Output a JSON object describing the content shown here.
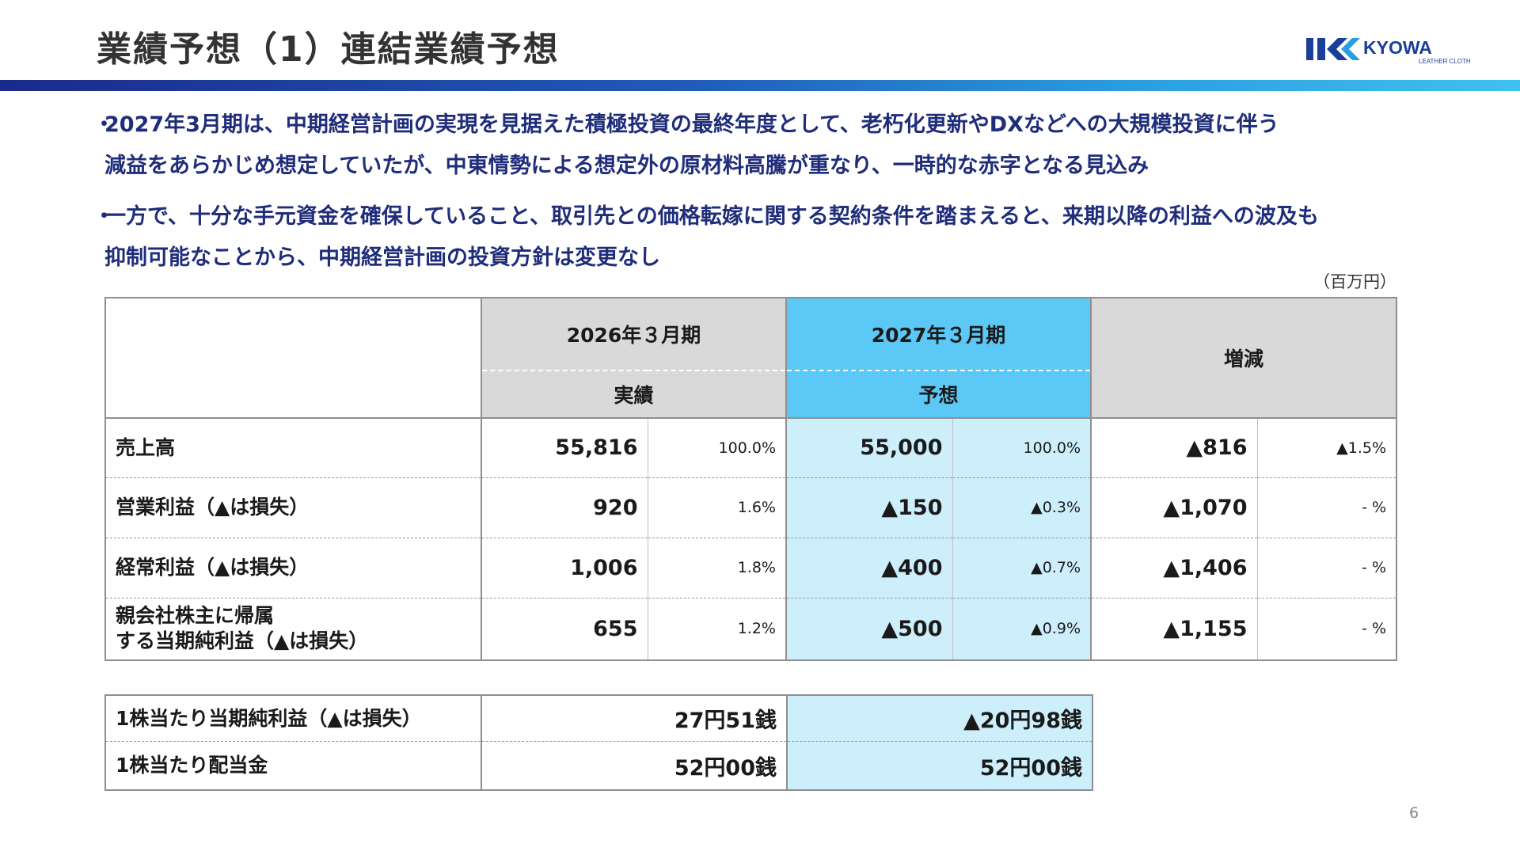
{
  "slide": {
    "title": "業績予想（1）連結業績予想",
    "logo_text": "KYOWA",
    "logo_subtext": "LEATHER CLOTH",
    "page_number": "6"
  },
  "bullets": [
    {
      "mark": "・",
      "line1": "2027年3月期は、中期経営計画の実現を見据えた積極投資の最終年度として、老朽化更新やDXなどへの大規模投資に伴う",
      "line2": "減益をあらかじめ想定していたが、中東情勢による想定外の原材料高騰が重なり、一時的な赤字となる見込み"
    },
    {
      "mark": "・",
      "line1": "一方で、十分な手元資金を確保していること、取引先との価格転嫁に関する契約条件を踏まえると、来期以降の利益への波及も",
      "line2": "抑制可能なことから、中期経営計画の投資方針は変更なし"
    }
  ],
  "unit_label": "（百万円）",
  "table": {
    "header": {
      "period_prev": "2026年３月期",
      "period_next": "2027年３月期",
      "change": "増減",
      "sub_prev": "実績",
      "sub_next": "予想"
    },
    "rows": [
      {
        "label": "売上高",
        "label2": "",
        "prev_value": "55,816",
        "prev_ratio": "100.0%",
        "next_value": "55,000",
        "next_ratio": "100.0%",
        "change_value": "▲816",
        "change_ratio": "▲1.5%"
      },
      {
        "label": "営業利益（▲は損失）",
        "label2": "",
        "prev_value": "920",
        "prev_ratio": "1.6%",
        "next_value": "▲150",
        "next_ratio": "▲0.3%",
        "change_value": "▲1,070",
        "change_ratio": "- %"
      },
      {
        "label": "経常利益（▲は損失）",
        "label2": "",
        "prev_value": "1,006",
        "prev_ratio": "1.8%",
        "next_value": "▲400",
        "next_ratio": "▲0.7%",
        "change_value": "▲1,406",
        "change_ratio": "- %"
      },
      {
        "label": "親会社株主に帰属",
        "label2": "する当期純利益（▲は損失）",
        "prev_value": "655",
        "prev_ratio": "1.2%",
        "next_value": "▲500",
        "next_ratio": "▲0.9%",
        "change_value": "▲1,155",
        "change_ratio": "- %"
      }
    ]
  },
  "eps_table": {
    "rows": [
      {
        "label": "1株当たり当期純利益（▲は損失）",
        "prev": "27円51銭",
        "next": "▲20円98銭"
      },
      {
        "label": "1株当たり配当金",
        "prev": "52円00銭",
        "next": "52円00銭"
      }
    ]
  },
  "colors": {
    "bullet_text": "#1f2d7a",
    "header_gray": "#d9d9d9",
    "header_blue": "#5bc8f5",
    "cell_blue": "#cdeffc",
    "bar_start": "#1b2a8c",
    "bar_end": "#3fc1f0",
    "logo_blue": "#1a3f9a"
  }
}
